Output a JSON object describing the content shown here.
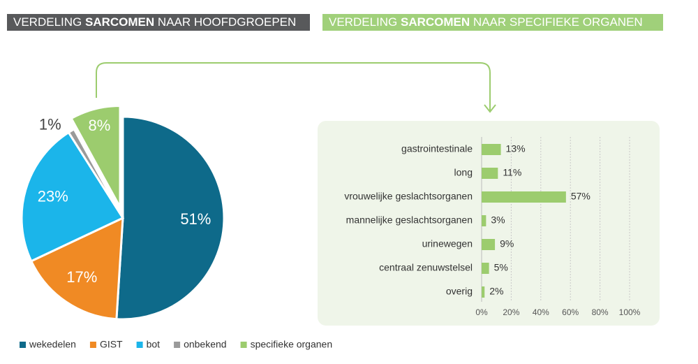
{
  "header_left": [
    "VERDELING",
    "SARCOMEN",
    "NAAR HOOFDGROEPEN"
  ],
  "header_right": [
    "VERDELING",
    "SARCOMEN",
    "NAAR SPECIFIEKE ORGANEN"
  ],
  "chart_data": [
    {
      "type": "pie",
      "categories": [
        "wekedelen",
        "GIST",
        "bot",
        "onbekend",
        "specifieke organen"
      ],
      "values": [
        51,
        17,
        23,
        1,
        8
      ],
      "value_labels": [
        "51%",
        "17%",
        "23%",
        "1%",
        "8%"
      ],
      "colors": [
        "#0e6a8a",
        "#f08a24",
        "#1bb5ea",
        "#9a9a9a",
        "#9ccc6e"
      ],
      "legend": "bottom"
    },
    {
      "type": "bar",
      "orientation": "horizontal",
      "categories": [
        "gastrointestinale",
        "long",
        "vrouwelijke geslachtsorganen",
        "mannelijke geslachtsorganen",
        "urinewegen",
        "centraal zenuwstelsel",
        "overig"
      ],
      "values": [
        13,
        11,
        57,
        3,
        9,
        5,
        2
      ],
      "value_labels": [
        "13%",
        "11%",
        "57%",
        "3%",
        "9%",
        "5%",
        "2%"
      ],
      "color": "#9ccc6e",
      "xlim": [
        0,
        100
      ],
      "xticks": [
        {
          "value": 0,
          "label": "0%"
        },
        {
          "value": 20,
          "label": "20%"
        },
        {
          "value": 40,
          "label": "40%"
        },
        {
          "value": 60,
          "label": "60%"
        },
        {
          "value": 80,
          "label": "80%"
        },
        {
          "value": 100,
          "label": "100%"
        }
      ],
      "grid": true
    }
  ]
}
